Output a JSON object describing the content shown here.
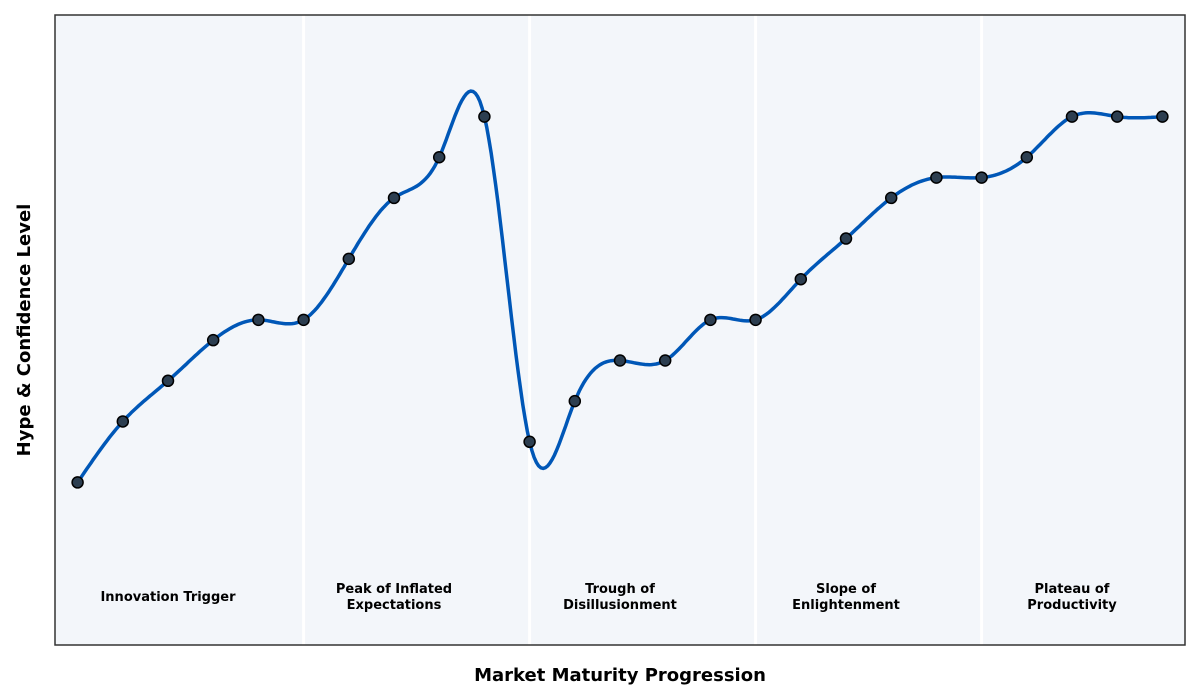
{
  "chart_data": {
    "type": "line",
    "title": "",
    "xlabel": "Market Maturity Progression",
    "ylabel": "Hype & Confidence Level",
    "xlim": [
      -0.5,
      24.5
    ],
    "ylim": [
      0,
      15.5
    ],
    "grid": false,
    "ticks_visible": false,
    "x": [
      0,
      1,
      2,
      3,
      4,
      5,
      6,
      7,
      8,
      9,
      10,
      11,
      12,
      13,
      14,
      15,
      16,
      17,
      18,
      19,
      20,
      21,
      22,
      23,
      24
    ],
    "series": [
      {
        "values": [
          4.0,
          5.5,
          6.5,
          7.5,
          8.0,
          8.0,
          9.5,
          11.0,
          12.0,
          13.0,
          5.0,
          6.0,
          7.0,
          7.0,
          8.0,
          8.0,
          9.0,
          10.0,
          11.0,
          11.5,
          11.5,
          12.0,
          13.0,
          13.0,
          13.0
        ],
        "line_color": "#0057b7",
        "marker_color": "#2c3e50",
        "smooth": true
      }
    ],
    "phase_boundaries": [
      5,
      10,
      15,
      20
    ],
    "phases": [
      {
        "label_lines": [
          "Innovation Trigger"
        ],
        "x": 2
      },
      {
        "label_lines": [
          "Peak of Inflated",
          "Expectations"
        ],
        "x": 7
      },
      {
        "label_lines": [
          "Trough of",
          "Disillusionment"
        ],
        "x": 12
      },
      {
        "label_lines": [
          "Slope of",
          "Enlightenment"
        ],
        "x": 17
      },
      {
        "label_lines": [
          "Plateau of",
          "Productivity"
        ],
        "x": 22
      }
    ],
    "phase_label_y": 1.2,
    "background_color": "#f3f6fa"
  }
}
